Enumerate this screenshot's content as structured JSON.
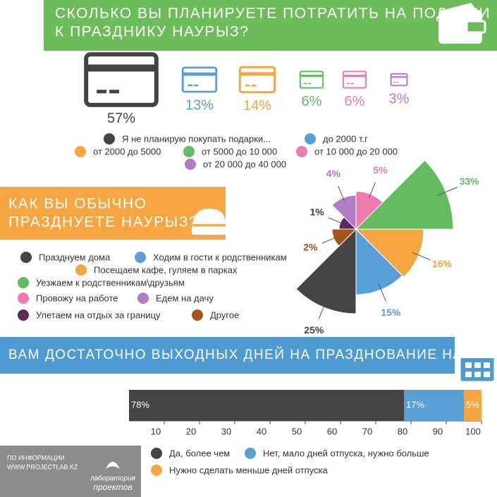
{
  "chart_data": [
    {
      "type": "icon",
      "title": [
        "СКОЛЬКО ВЫ ПЛАНИРУЕТЕ ПОТРАТИТЬ НА ПОДАРКИ",
        "К ПРАЗДНИКУ НАУРЫЗ?"
      ],
      "categories": [
        "Я не планирую покупать подарки...",
        "до 2000 т.г",
        "от 2000 до 5000",
        "от 5000 до 10 000",
        "от 10 000 до 20 000",
        "от 20 000 до 40 000"
      ],
      "values": [
        57,
        13,
        14,
        6,
        6,
        3
      ],
      "value_labels": [
        "57%",
        "13%",
        "14%",
        "6%",
        "6%",
        "3%"
      ],
      "colors": [
        "#444444",
        "#5aa0d8",
        "#f7a541",
        "#62bb5f",
        "#ee7bb0",
        "#b07cc6"
      ]
    },
    {
      "type": "rose",
      "title": [
        "КАК ВЫ ОБЫЧНО",
        "ПРАЗДНУЕТЕ НАУРЫЗ?"
      ],
      "categories": [
        "Празднуем дома",
        "Ходим в гости к родственникам",
        "Посещаем кафе, гуляем в парках",
        "Уезжаем к родственникам\\друзьям",
        "Провожу на работе",
        "Едем на дачу",
        "Улетаем на отдых за границу",
        "Другое"
      ],
      "values": [
        25,
        15,
        16,
        33,
        5,
        4,
        1,
        2
      ],
      "value_labels": [
        "25%",
        "15%",
        "16%",
        "33%",
        "5%",
        "4%",
        "1%",
        "2%"
      ],
      "colors": [
        "#444444",
        "#5aa0d8",
        "#f7a541",
        "#62bb5f",
        "#ee7bb0",
        "#b07cc6",
        "#5b2a5e",
        "#a5541a"
      ]
    },
    {
      "type": "stacked-bar",
      "title": "ВАМ ДОСТАТОЧНО ВЫХОДНЫХ ДНЕЙ НА ПРАЗДНОВАНИЕ НАУРЫЗА?",
      "series": [
        {
          "name": "Да, более чем",
          "color": "#444444",
          "values": [
            78
          ],
          "value_labels": [
            "78%"
          ]
        },
        {
          "name": "Нет, мало дней отпуска, нужно больше",
          "color": "#5aa0d8",
          "values": [
            17
          ],
          "value_labels": [
            "17%"
          ]
        },
        {
          "name": "Нужно сделать меньше дней отпуска",
          "color": "#f7a541",
          "values": [
            5
          ],
          "value_labels": [
            "5%"
          ]
        }
      ],
      "xlim": [
        0,
        100
      ],
      "xticks": [
        10,
        20,
        30,
        40,
        50,
        60,
        70,
        80,
        90,
        100
      ]
    }
  ],
  "footer": {
    "source": [
      "ПО ИНФОРМАЦИИ",
      "WWW.PROJECTLAB.KZ"
    ],
    "logo": [
      "лаборатория",
      "проектов"
    ]
  }
}
